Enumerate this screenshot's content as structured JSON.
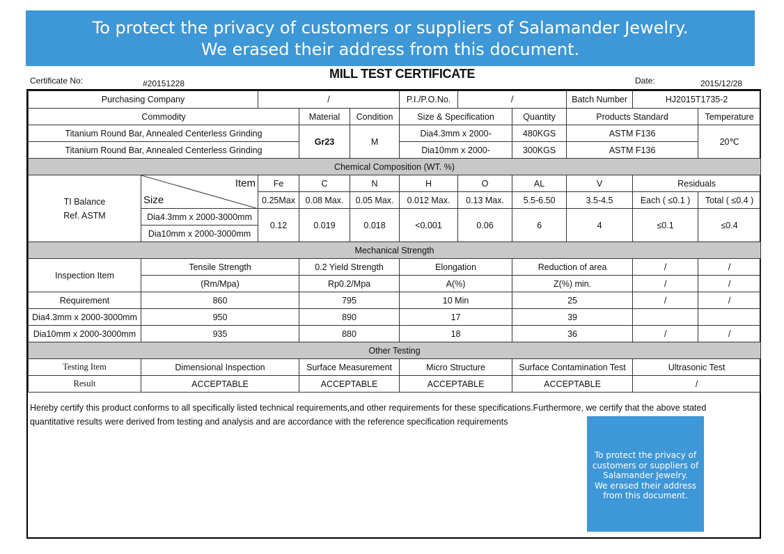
{
  "banner": {
    "line1": "To protect the privacy of customers or suppliers of Salamander Jewelry.",
    "line2": "We erased their address from this document."
  },
  "header": {
    "title": "MILL TEST CERTIFICATE",
    "cert_label": "Certificate No:",
    "cert_value": "#20151228",
    "date_label": "Date:",
    "date_value": "2015/12/28"
  },
  "info": {
    "purchasing_label": "Purchasing Company",
    "purchasing_value": "/",
    "po_label": "P.I./P.O.No.",
    "po_value": "/",
    "batch_label": "Batch Number",
    "batch_value": "HJ2015T1735-2"
  },
  "commodity": {
    "headers": [
      "Commodity",
      "Material",
      "Condition",
      "Size & Specification",
      "Quantity",
      "Products Standard",
      "Temperature"
    ],
    "rows": [
      {
        "name": "Titanium Round Bar, Annealed Centerless Grinding",
        "size": "Dia4.3mm x 2000-",
        "quantity": "480KGS",
        "standard": "ASTM F136"
      },
      {
        "name": "Titanium Round Bar, Annealed Centerless Grinding",
        "size": "Dia10mm x 2000-",
        "quantity": "300KGS",
        "standard": "ASTM F136"
      }
    ],
    "material": "Gr23",
    "condition": "M",
    "temperature": "20℃"
  },
  "chemical": {
    "section_title": "Chemical Composition (WT. %)",
    "left_line1": "TI Balance",
    "left_line2": "Ref. ASTM",
    "item_label": "Item",
    "size_label": "Size",
    "elements": [
      "Fe",
      "C",
      "N",
      "H",
      "O",
      "AL",
      "V"
    ],
    "residuals_label": "Residuals",
    "limits": [
      "0.25Max",
      "0.08 Max.",
      "0.05 Max.",
      "0.012 Max.",
      "0.13 Max.",
      "5.5-6.50",
      "3.5-4.5"
    ],
    "residual_each": "Each ( ≤0.1 )",
    "residual_total": "Total ( ≤0.4 )",
    "size1": "Dia4.3mm x 2000-3000mm",
    "size2": "Dia10mm x 2000-3000mm",
    "results": [
      "0.12",
      "0.019",
      "0.018",
      "<0.001",
      "0.06",
      "6",
      "4"
    ],
    "result_each": "≤0.1",
    "result_total": "≤0.4"
  },
  "mechanical": {
    "section_title": "Mechanical Strength",
    "inspection_label": "Inspection Item",
    "headers": [
      "Tensile Strength",
      "0.2 Yield Strength",
      "Elongation",
      "Reduction of area",
      "/",
      "/"
    ],
    "units": [
      "(Rm/Mpa)",
      "Rp0.2/Mpa",
      "A(%)",
      "Z(%) min.",
      "/",
      "/"
    ],
    "rows": [
      {
        "label": "Requirement",
        "values": [
          "860",
          "795",
          "10 Min",
          "25",
          "/",
          "/"
        ]
      },
      {
        "label": "Dia4.3mm x 2000-3000mm",
        "values": [
          "950",
          "890",
          "17",
          "39",
          "",
          ""
        ]
      },
      {
        "label": "Dia10mm x 2000-3000mm",
        "values": [
          "935",
          "880",
          "18",
          "36",
          "/",
          "/"
        ]
      }
    ]
  },
  "other": {
    "section_title": "Other Testing",
    "item_label": "Testing Item",
    "result_label": "Result",
    "tests": [
      "Dimensional Inspection",
      "Surface Measurement",
      "Micro Structure",
      "Surface Contamination Test",
      "Ultrasonic Test"
    ],
    "results": [
      "ACCEPTABLE",
      "ACCEPTABLE",
      "ACCEPTABLE",
      "ACCEPTABLE",
      "/"
    ]
  },
  "statement": {
    "line1": "Hereby certify this product conforms to all specifically listed technical requirements,and other requirements for these specifications.Furthermore, we certify that the above stated",
    "line2": "quantitative results were derived from testing and analysis and are accordance with the reference specification requirements"
  },
  "note": {
    "lines": [
      "To protect the privacy of",
      "customers or suppliers of",
      "Salamander Jewelry.",
      "We erased their address",
      "from this document."
    ]
  }
}
